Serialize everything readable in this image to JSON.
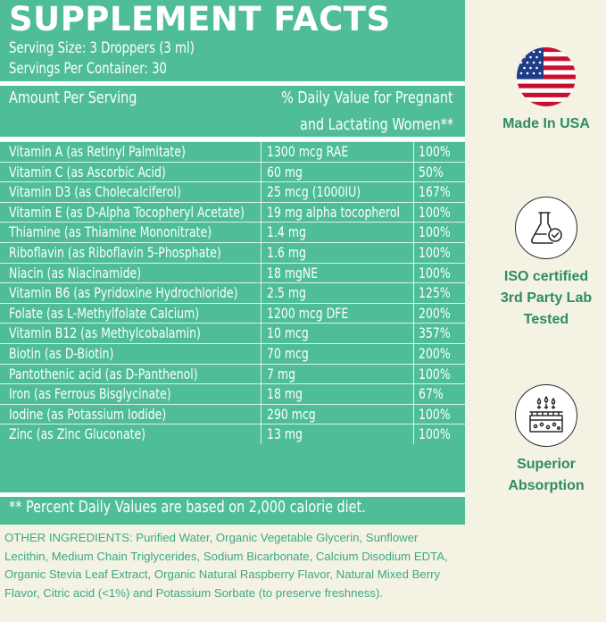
{
  "panel": {
    "title": "SUPPLEMENT FACTS",
    "serving_size": "Serving Size: 3 Droppers (3 ml)",
    "servings_per_container": "Servings Per Container: 30",
    "header_left": "Amount Per Serving",
    "header_right_line1": "% Daily Value for Pregnant",
    "header_right_line2": "and Lactating Women**",
    "rows": [
      {
        "name": "Vitamin A (as Retinyl Palmitate)",
        "amount": "1300 mcg RAE",
        "dv": "100%"
      },
      {
        "name": "Vitamin C (as Ascorbic Acid)",
        "amount": "60 mg",
        "dv": "50%"
      },
      {
        "name": "Vitamin D3 (as Cholecalciferol)",
        "amount": "25 mcg (1000IU)",
        "dv": "167%"
      },
      {
        "name": "Vitamin E (as D-Alpha Tocopheryl Acetate)",
        "amount": "19 mg alpha tocopherol",
        "dv": "100%"
      },
      {
        "name": "Thiamine (as Thiamine Mononitrate)",
        "amount": "1.4 mg",
        "dv": "100%"
      },
      {
        "name": "Riboflavin (as Riboflavin 5-Phosphate)",
        "amount": "1.6 mg",
        "dv": "100%"
      },
      {
        "name": "Niacin (as Niacinamide)",
        "amount": "18 mgNE",
        "dv": "100%"
      },
      {
        "name": "Vitamin B6 (as Pyridoxine Hydrochloride)",
        "amount": "2.5 mg",
        "dv": "125%"
      },
      {
        "name": "Folate (as L-Methylfolate Calcium)",
        "amount": "1200 mcg DFE",
        "dv": "200%"
      },
      {
        "name": "Vitamin B12 (as Methylcobalamin)",
        "amount": "10 mcg",
        "dv": "357%"
      },
      {
        "name": "Biotin (as D-Biotin)",
        "amount": "70 mcg",
        "dv": "200%"
      },
      {
        "name": "Pantothenic acid (as D-Panthenol)",
        "amount": "7 mg",
        "dv": "100%"
      },
      {
        "name": "Iron (as Ferrous Bisglycinate)",
        "amount": "18 mg",
        "dv": "67%"
      },
      {
        "name": "Iodine (as Potassium Iodide)",
        "amount": "290 mcg",
        "dv": "100%"
      },
      {
        "name": "Zinc (as Zinc Gluconate)",
        "amount": "13 mg",
        "dv": "100%"
      }
    ],
    "footnote": "** Percent Daily Values are based on 2,000 calorie diet."
  },
  "other_ingredients": "OTHER INGREDIENTS: Purified Water, Organic Vegetable Glycerin, Sunflower Lecithin, Medium Chain Triglycerides, Sodium Bicarbonate, Calcium Disodium EDTA, Organic Stevia Leaf Extract, Organic Natural Raspberry Flavor, Natural Mixed Berry Flavor, Citric acid (<1%) and Potassium Sorbate (to preserve freshness).",
  "badges": [
    {
      "label": "Made In USA",
      "icon": "us-flag-icon"
    },
    {
      "label": "ISO certified 3rd Party Lab Tested",
      "icon": "lab-flask-check-icon"
    },
    {
      "label": "Superior Absorption",
      "icon": "skin-absorption-icon"
    }
  ],
  "colors": {
    "panel": "#4fbe96",
    "background": "#f4f2e3",
    "ingredients_text": "#3ca985",
    "badge_label": "#2e8b63"
  }
}
